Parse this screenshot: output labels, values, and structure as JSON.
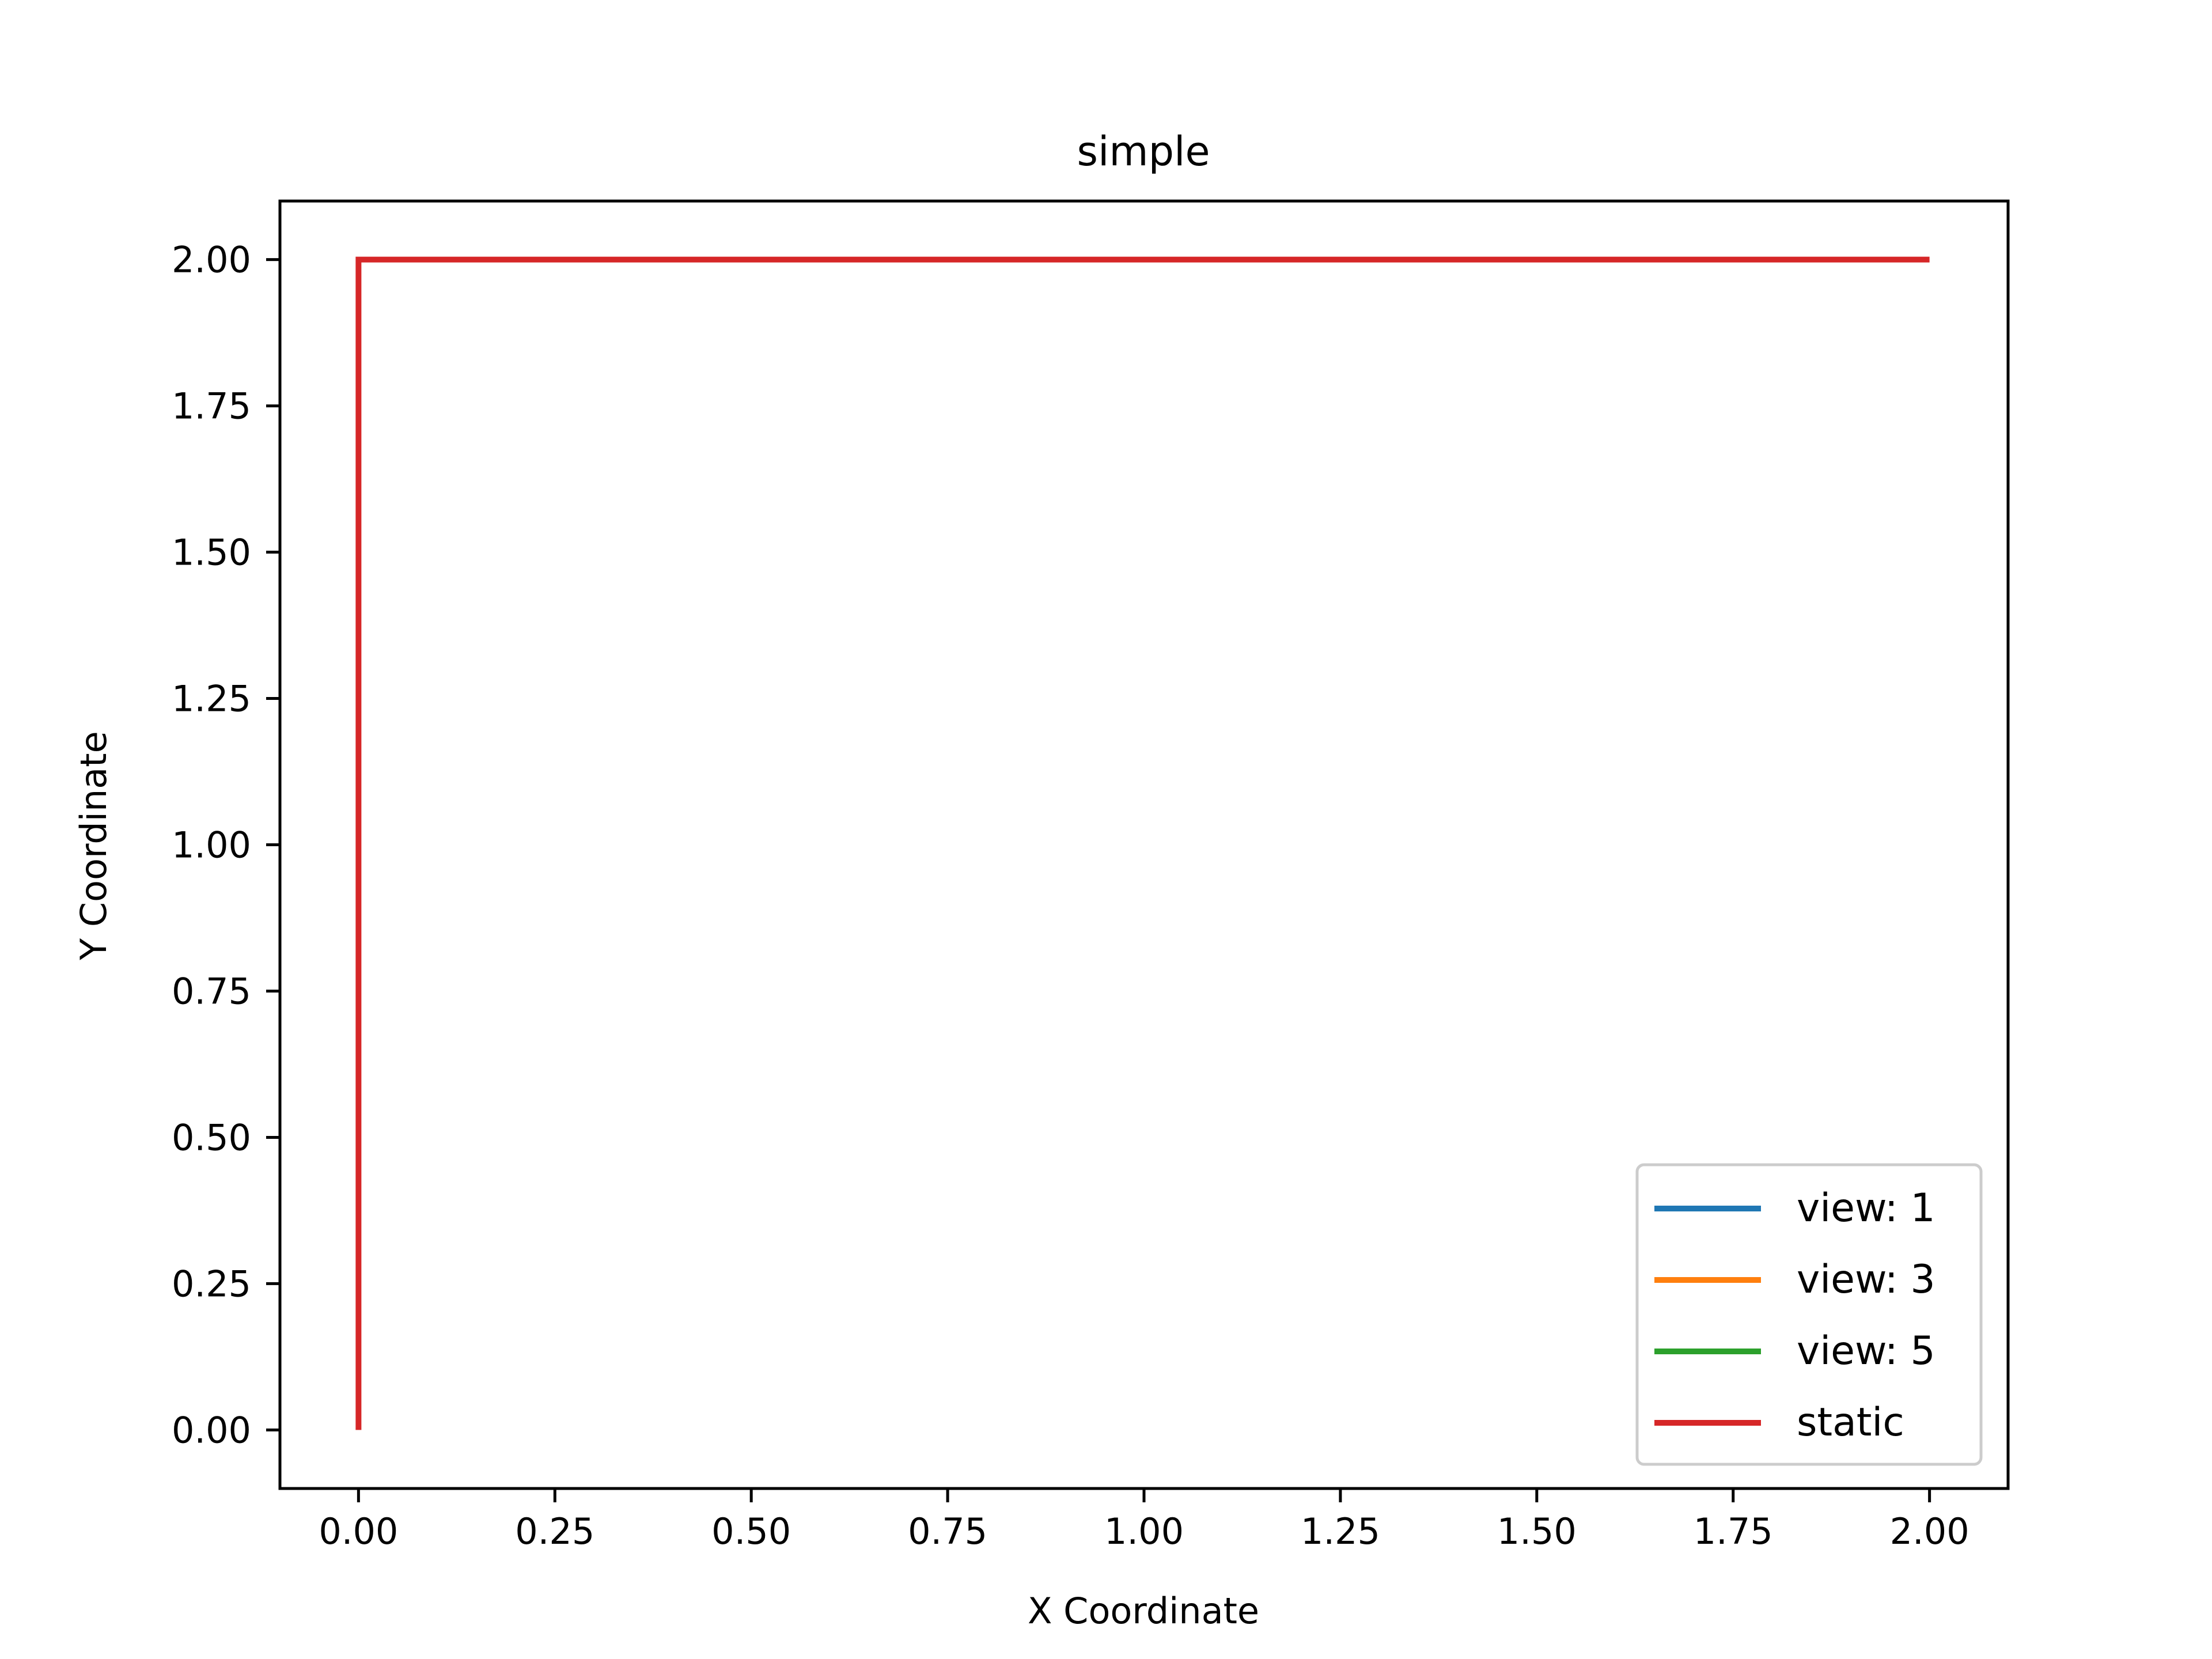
{
  "chart_data": {
    "type": "line",
    "title": "simple",
    "xlabel": "X Coordinate",
    "ylabel": "Y Coordinate",
    "xlim": [
      -0.1,
      2.1
    ],
    "ylim": [
      -0.1,
      2.1
    ],
    "xticks": [
      0.0,
      0.25,
      0.5,
      0.75,
      1.0,
      1.25,
      1.5,
      1.75,
      2.0
    ],
    "xtick_labels": [
      "0.00",
      "0.25",
      "0.50",
      "0.75",
      "1.00",
      "1.25",
      "1.50",
      "1.75",
      "2.00"
    ],
    "yticks": [
      0.0,
      0.25,
      0.5,
      0.75,
      1.0,
      1.25,
      1.5,
      1.75,
      2.0
    ],
    "ytick_labels": [
      "0.00",
      "0.25",
      "0.50",
      "0.75",
      "1.00",
      "1.25",
      "1.50",
      "1.75",
      "2.00"
    ],
    "grid": false,
    "legend_position": "lower-right",
    "series": [
      {
        "name": "view: 1",
        "color": "#1f77b4",
        "x": [],
        "y": []
      },
      {
        "name": "view: 3",
        "color": "#ff7f0e",
        "x": [],
        "y": []
      },
      {
        "name": "view: 5",
        "color": "#2ca02c",
        "x": [],
        "y": []
      },
      {
        "name": "static",
        "color": "#d62728",
        "x": [
          0,
          0,
          2
        ],
        "y": [
          0,
          2,
          2
        ]
      }
    ]
  }
}
